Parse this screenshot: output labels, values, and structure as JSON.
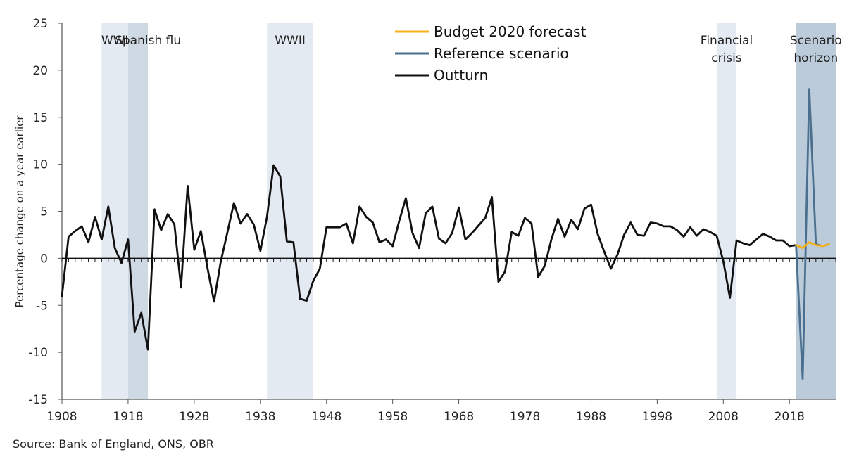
{
  "chart_data": {
    "type": "line",
    "title": "",
    "xlabel": "",
    "ylabel": "Percentage change on a year earlier",
    "xlim": [
      1908,
      2025
    ],
    "ylim": [
      -15,
      25
    ],
    "yticks": [
      -15,
      -10,
      -5,
      0,
      5,
      10,
      15,
      20,
      25
    ],
    "xticks": [
      1908,
      1918,
      1928,
      1938,
      1948,
      1958,
      1968,
      1978,
      1988,
      1998,
      2008,
      2018
    ],
    "grid": false,
    "legend_position": "top-center",
    "shaded_periods": [
      {
        "label": "WWI",
        "start": 1914,
        "end": 1918,
        "color": "#e4eaf1"
      },
      {
        "label": "Spanish flu",
        "start": 1918,
        "end": 1921,
        "color": "#cfd9e4"
      },
      {
        "label": "WWII",
        "start": 1939,
        "end": 1946,
        "color": "#e4eaf1"
      },
      {
        "label": "Financial crisis",
        "start": 2007,
        "end": 2010,
        "color": "#e4eaf1"
      },
      {
        "label": "Scenario horizon",
        "start": 2019,
        "end": 2025,
        "color": "#bccbd9"
      }
    ],
    "annotations": [
      {
        "lines": [
          "WWI"
        ],
        "x": 1916
      },
      {
        "lines": [
          "Spanish flu"
        ],
        "x": 1921
      },
      {
        "lines": [
          "WWII"
        ],
        "x": 1942.5
      },
      {
        "lines": [
          "Financial",
          "crisis"
        ],
        "x": 2008.5
      },
      {
        "lines": [
          "Scenario",
          "horizon"
        ],
        "x": 2022
      }
    ],
    "series": [
      {
        "name": "Budget 2020 forecast",
        "color": "#f5b21c",
        "x": [
          2019,
          2020,
          2021,
          2022,
          2023,
          2024
        ],
        "y": [
          1.4,
          1.1,
          1.7,
          1.4,
          1.3,
          1.5
        ]
      },
      {
        "name": "Reference scenario",
        "color": "#4a6f8f",
        "x": [
          2019,
          2020,
          2021,
          2022,
          2023,
          2024
        ],
        "y": [
          1.4,
          -12.8,
          18.0,
          1.5,
          1.3,
          1.5
        ]
      },
      {
        "name": "Outturn",
        "color": "#111111",
        "x": [
          1908,
          1909,
          1910,
          1911,
          1912,
          1913,
          1914,
          1915,
          1916,
          1917,
          1918,
          1919,
          1920,
          1921,
          1922,
          1923,
          1924,
          1925,
          1926,
          1927,
          1928,
          1929,
          1930,
          1931,
          1932,
          1933,
          1934,
          1935,
          1936,
          1937,
          1938,
          1939,
          1940,
          1941,
          1942,
          1943,
          1944,
          1945,
          1946,
          1947,
          1948,
          1949,
          1950,
          1951,
          1952,
          1953,
          1954,
          1955,
          1956,
          1957,
          1958,
          1959,
          1960,
          1961,
          1962,
          1963,
          1964,
          1965,
          1966,
          1967,
          1968,
          1969,
          1970,
          1971,
          1972,
          1973,
          1974,
          1975,
          1976,
          1977,
          1978,
          1979,
          1980,
          1981,
          1982,
          1983,
          1984,
          1985,
          1986,
          1987,
          1988,
          1989,
          1990,
          1991,
          1992,
          1993,
          1994,
          1995,
          1996,
          1997,
          1998,
          1999,
          2000,
          2001,
          2002,
          2003,
          2004,
          2005,
          2006,
          2007,
          2008,
          2009,
          2010,
          2011,
          2012,
          2013,
          2014,
          2015,
          2016,
          2017,
          2018,
          2019
        ],
        "y": [
          -4.0,
          2.3,
          2.9,
          3.4,
          1.7,
          4.4,
          2.0,
          5.5,
          1.1,
          -0.5,
          2.0,
          -7.8,
          -5.8,
          -9.7,
          5.2,
          3.0,
          4.7,
          3.6,
          -3.1,
          7.7,
          0.9,
          2.9,
          -1.0,
          -4.6,
          -0.4,
          2.7,
          5.9,
          3.7,
          4.7,
          3.6,
          0.8,
          4.4,
          9.9,
          8.7,
          1.8,
          1.7,
          -4.3,
          -4.5,
          -2.4,
          -1.1,
          3.3,
          3.3,
          3.3,
          3.7,
          1.6,
          5.5,
          4.4,
          3.8,
          1.7,
          2.0,
          1.3,
          4.0,
          6.4,
          2.7,
          1.1,
          4.8,
          5.5,
          2.1,
          1.6,
          2.7,
          5.4,
          2.0,
          2.7,
          3.5,
          4.3,
          6.5,
          -2.5,
          -1.4,
          2.8,
          2.4,
          4.3,
          3.7,
          -2.0,
          -0.8,
          2.0,
          4.2,
          2.3,
          4.1,
          3.1,
          5.3,
          5.7,
          2.6,
          0.7,
          -1.1,
          0.4,
          2.5,
          3.8,
          2.5,
          2.4,
          3.8,
          3.7,
          3.4,
          3.4,
          3.0,
          2.3,
          3.3,
          2.4,
          3.1,
          2.8,
          2.4,
          -0.3,
          -4.2,
          1.9,
          1.6,
          1.4,
          2.0,
          2.6,
          2.3,
          1.9,
          1.9,
          1.3,
          1.4
        ]
      }
    ],
    "legend": [
      {
        "label": "Budget 2020 forecast",
        "color": "#f5b21c"
      },
      {
        "label": "Reference scenario",
        "color": "#4a6f8f"
      },
      {
        "label": "Outturn",
        "color": "#111111"
      }
    ]
  },
  "source": "Source: Bank of England, ONS, OBR"
}
